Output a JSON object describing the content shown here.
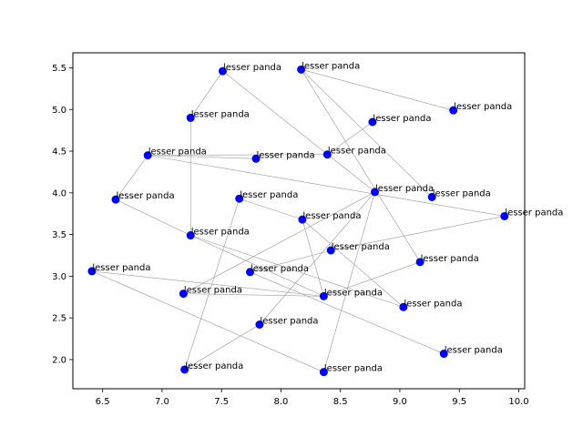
{
  "chart_data": {
    "type": "scatter",
    "title": "",
    "xlabel": "",
    "ylabel": "",
    "xlim": [
      6.25,
      10.05
    ],
    "ylim": [
      1.65,
      5.68
    ],
    "xticks": [
      "6.5",
      "7.0",
      "7.5",
      "8.0",
      "8.5",
      "9.0",
      "9.5",
      "10.0"
    ],
    "yticks": [
      "2.0",
      "2.5",
      "3.0",
      "3.5",
      "4.0",
      "4.5",
      "5.0",
      "5.5"
    ],
    "grid": false,
    "point_color": "#0000ff",
    "edge_color": "#999999",
    "points": [
      {
        "x": 7.51,
        "y": 5.46,
        "label": "lesser panda"
      },
      {
        "x": 8.17,
        "y": 5.48,
        "label": "lesser panda"
      },
      {
        "x": 9.45,
        "y": 4.99,
        "label": "lesser panda"
      },
      {
        "x": 7.24,
        "y": 4.9,
        "label": "lesser panda"
      },
      {
        "x": 8.77,
        "y": 4.85,
        "label": "lesser panda"
      },
      {
        "x": 6.88,
        "y": 4.45,
        "label": "lesser panda"
      },
      {
        "x": 7.79,
        "y": 4.41,
        "label": "lesser panda"
      },
      {
        "x": 8.39,
        "y": 4.46,
        "label": "lesser panda"
      },
      {
        "x": 8.79,
        "y": 4.01,
        "label": "lesser panda"
      },
      {
        "x": 9.27,
        "y": 3.95,
        "label": "lesser panda"
      },
      {
        "x": 6.61,
        "y": 3.92,
        "label": "lesser panda"
      },
      {
        "x": 7.65,
        "y": 3.93,
        "label": "lesser panda"
      },
      {
        "x": 8.18,
        "y": 3.68,
        "label": "lesser panda"
      },
      {
        "x": 9.88,
        "y": 3.72,
        "label": "lesser panda"
      },
      {
        "x": 7.24,
        "y": 3.49,
        "label": "lesser panda"
      },
      {
        "x": 8.42,
        "y": 3.31,
        "label": "lesser panda"
      },
      {
        "x": 9.17,
        "y": 3.17,
        "label": "lesser panda"
      },
      {
        "x": 6.41,
        "y": 3.06,
        "label": "lesser panda"
      },
      {
        "x": 7.74,
        "y": 3.05,
        "label": "lesser panda"
      },
      {
        "x": 7.18,
        "y": 2.79,
        "label": "lesser panda"
      },
      {
        "x": 8.36,
        "y": 2.76,
        "label": "lesser panda"
      },
      {
        "x": 9.03,
        "y": 2.63,
        "label": "lesser panda"
      },
      {
        "x": 7.82,
        "y": 2.42,
        "label": "lesser panda"
      },
      {
        "x": 9.37,
        "y": 2.07,
        "label": "lesser panda"
      },
      {
        "x": 7.19,
        "y": 1.88,
        "label": "lesser panda"
      },
      {
        "x": 8.36,
        "y": 1.85,
        "label": "lesser panda"
      }
    ],
    "edges": [
      [
        0,
        3
      ],
      [
        0,
        8
      ],
      [
        1,
        2
      ],
      [
        1,
        9
      ],
      [
        1,
        16
      ],
      [
        3,
        14
      ],
      [
        5,
        6
      ],
      [
        5,
        7
      ],
      [
        5,
        10
      ],
      [
        5,
        13
      ],
      [
        7,
        4
      ],
      [
        8,
        19
      ],
      [
        8,
        22
      ],
      [
        8,
        25
      ],
      [
        10,
        14
      ],
      [
        11,
        12
      ],
      [
        11,
        24
      ],
      [
        14,
        21
      ],
      [
        15,
        13
      ],
      [
        17,
        20
      ],
      [
        17,
        25
      ],
      [
        18,
        15
      ],
      [
        18,
        23
      ],
      [
        19,
        20
      ],
      [
        20,
        16
      ],
      [
        20,
        12
      ],
      [
        20,
        14
      ],
      [
        21,
        12
      ],
      [
        22,
        24
      ]
    ]
  }
}
